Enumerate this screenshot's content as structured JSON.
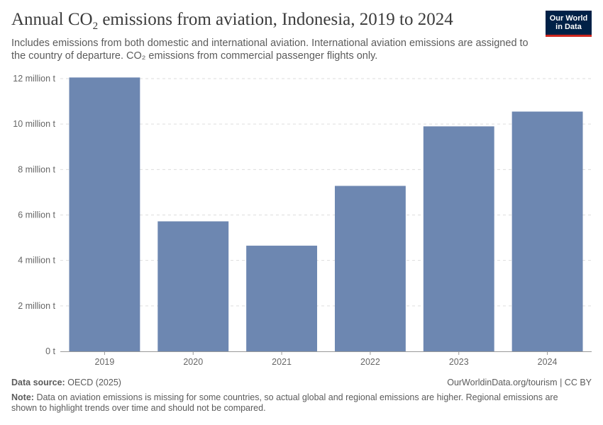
{
  "header": {
    "title_main": "Annual CO",
    "title_sub": "2",
    "title_rest": " emissions from aviation, Indonesia, 2019 to 2024",
    "subtitle": "Includes emissions from both domestic and international aviation. International aviation emissions are assigned to the country of departure. CO₂ emissions from commercial passenger flights only."
  },
  "logo": {
    "line1": "Our World",
    "line2": "in Data"
  },
  "footer": {
    "source_label": "Data source:",
    "source_value": "OECD (2025)",
    "url_license": "OurWorldinData.org/tourism | CC BY",
    "note_label": "Note:",
    "note_text": "Data on aviation emissions is missing for some countries, so actual global and regional emissions are higher. Regional emissions are shown to highlight trends over time and should not be compared."
  },
  "colors": {
    "bar": "#6d87b1",
    "grid": "#dddddd",
    "axis": "#999999"
  },
  "chart_data": {
    "type": "bar",
    "title": "Annual CO₂ emissions from aviation, Indonesia, 2019 to 2024",
    "xlabel": "",
    "ylabel": "",
    "categories": [
      "2019",
      "2020",
      "2021",
      "2022",
      "2023",
      "2024"
    ],
    "values": [
      12.05,
      5.72,
      4.65,
      7.28,
      9.9,
      10.55
    ],
    "unit": "million t",
    "ylim": [
      0,
      12
    ],
    "yticks": [
      0,
      2,
      4,
      6,
      8,
      10,
      12
    ],
    "ytick_labels": [
      "0 t",
      "2 million t",
      "4 million t",
      "6 million t",
      "8 million t",
      "10 million t",
      "12 million t"
    ],
    "grid": true
  }
}
